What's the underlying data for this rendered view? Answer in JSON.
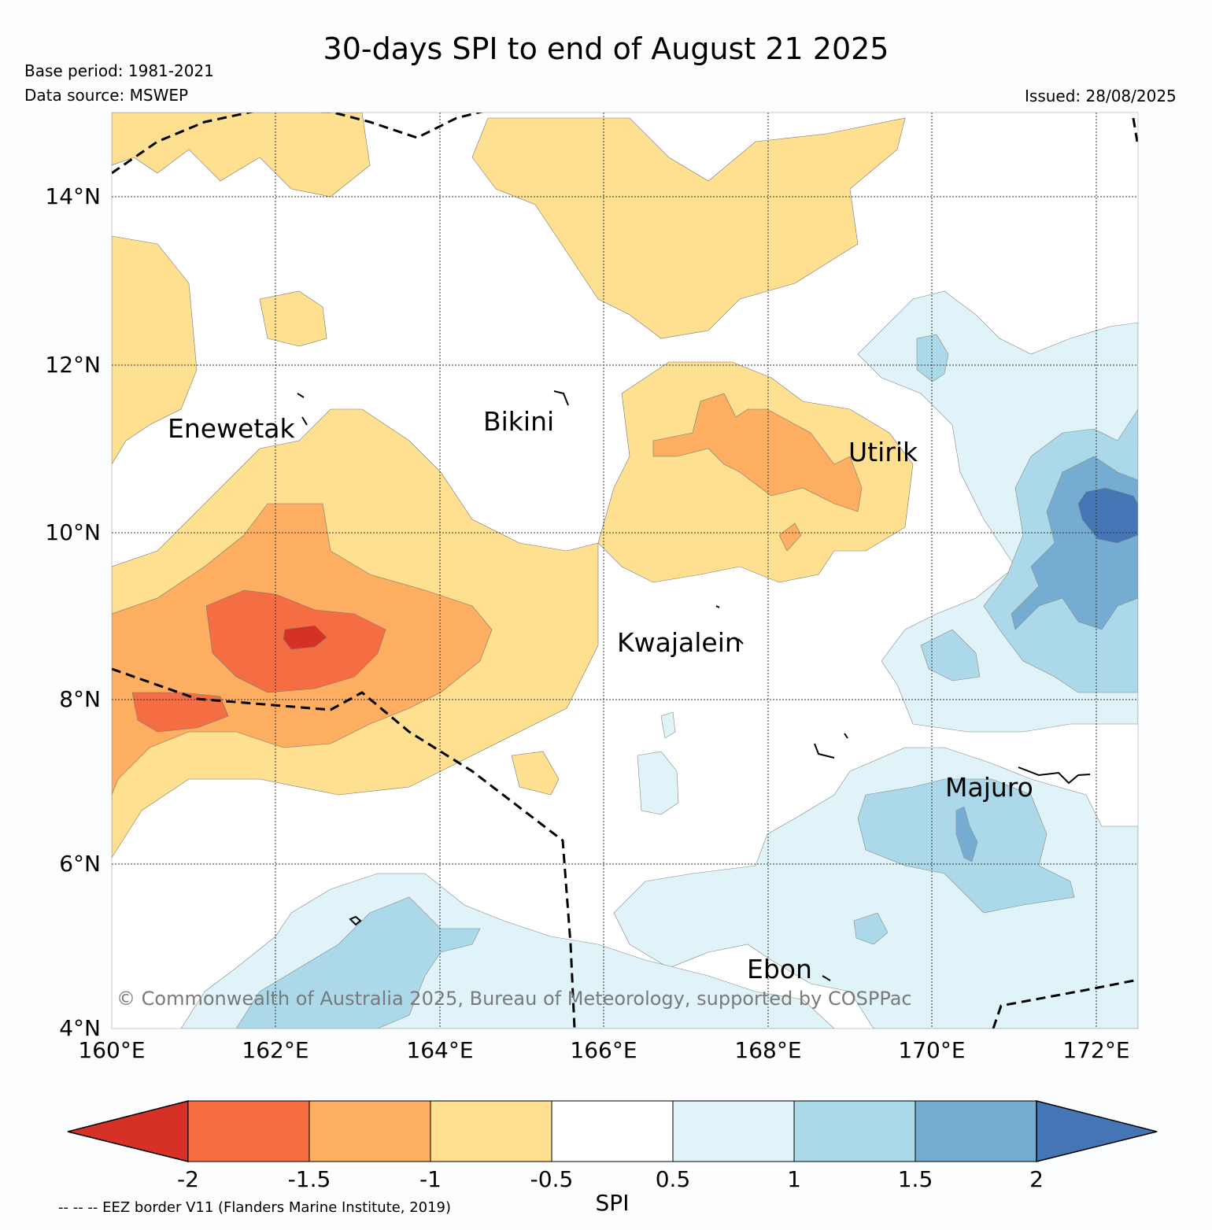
{
  "header": {
    "title": "30-days SPI to end of August 21 2025",
    "base_period": "Base period: 1981-2021",
    "data_source": "Data source: MSWEP",
    "issued": "Issued: 28/08/2025"
  },
  "map": {
    "lon_range": [
      160,
      172.5
    ],
    "lat_range": [
      4,
      15
    ],
    "lat_ticks": [
      "4°N",
      "6°N",
      "8°N",
      "10°N",
      "12°N",
      "14°N"
    ],
    "lon_ticks": [
      "160°E",
      "162°E",
      "164°E",
      "166°E",
      "168°E",
      "170°E",
      "172°E"
    ],
    "places": [
      {
        "name": "Enewetak",
        "lon": 162.3,
        "lat": 11.2
      },
      {
        "name": "Bikini",
        "lon": 165.4,
        "lat": 11.4
      },
      {
        "name": "Utirik",
        "lon": 169.7,
        "lat": 10.9
      },
      {
        "name": "Kwajalein",
        "lon": 167.3,
        "lat": 8.7
      },
      {
        "name": "Majuro",
        "lon": 171.1,
        "lat": 7.1
      },
      {
        "name": "Ebon",
        "lon": 168.6,
        "lat": 4.6
      }
    ],
    "copyright": "© Commonwealth of Australia 2025, Bureau of Meteorology, supported by COSPPac"
  },
  "colorbar": {
    "label": "SPI",
    "ticks": [
      "-2",
      "-1.5",
      "-1",
      "-0.5",
      "0.5",
      "1",
      "1.5",
      "2"
    ],
    "colors": [
      "#d73027",
      "#f46d43",
      "#fdae61",
      "#fee090",
      "#ffffff",
      "#e0f3f8",
      "#abd9e9",
      "#74add1",
      "#4575b4"
    ]
  },
  "footer": {
    "eez_note": "-- -- -- EEZ border V11 (Flanders Marine Institute, 2019)"
  }
}
